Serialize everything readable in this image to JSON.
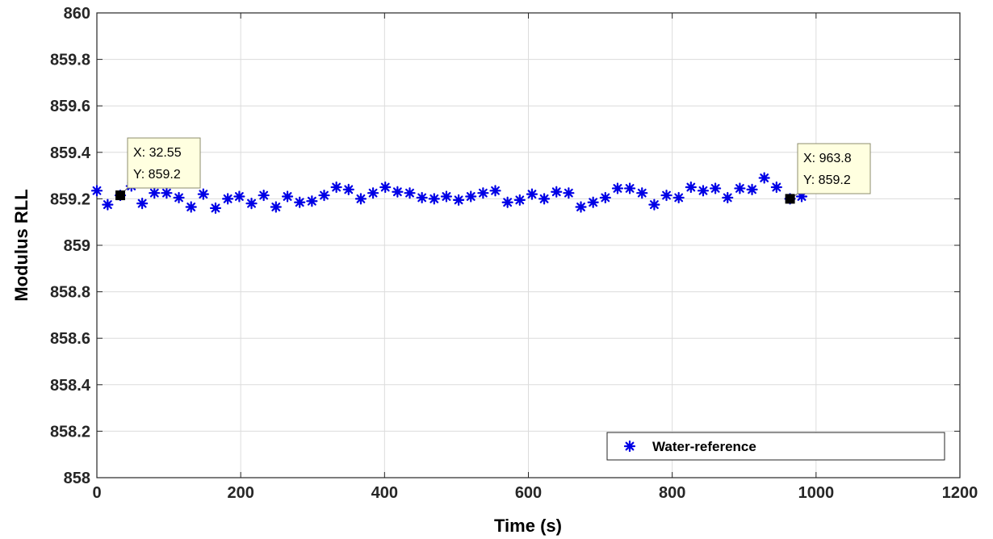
{
  "chart_data": {
    "type": "scatter",
    "title": "",
    "xlabel": "Time (s)",
    "ylabel": "Modulus RLL",
    "xlim": [
      0,
      1200
    ],
    "ylim": [
      858,
      860
    ],
    "xticks": [
      0,
      200,
      400,
      600,
      800,
      1000,
      1200
    ],
    "yticks": [
      858,
      858.2,
      858.4,
      858.6,
      858.8,
      859,
      859.2,
      859.4,
      859.6,
      859.8,
      860
    ],
    "ytick_labels": [
      "858",
      "858.2",
      "858.4",
      "858.6",
      "858.8",
      "859",
      "859.2",
      "859.4",
      "859.6",
      "859.8",
      "860"
    ],
    "grid": true,
    "legend_position": "bottom-right",
    "series": [
      {
        "name": "Water-reference",
        "color": "#0000e6",
        "marker": "star",
        "points": [
          [
            0,
            859.235
          ],
          [
            15,
            859.175
          ],
          [
            32.55,
            859.215
          ],
          [
            48,
            859.255
          ],
          [
            63,
            859.18
          ],
          [
            80,
            859.225
          ],
          [
            97,
            859.225
          ],
          [
            114,
            859.205
          ],
          [
            131,
            859.165
          ],
          [
            148,
            859.22
          ],
          [
            165,
            859.16
          ],
          [
            182,
            859.2
          ],
          [
            198,
            859.21
          ],
          [
            215,
            859.18
          ],
          [
            232,
            859.215
          ],
          [
            249,
            859.165
          ],
          [
            265,
            859.21
          ],
          [
            282,
            859.185
          ],
          [
            299,
            859.19
          ],
          [
            316,
            859.215
          ],
          [
            333,
            859.25
          ],
          [
            350,
            859.24
          ],
          [
            367,
            859.2
          ],
          [
            384,
            859.225
          ],
          [
            401,
            859.25
          ],
          [
            418,
            859.23
          ],
          [
            435,
            859.225
          ],
          [
            452,
            859.205
          ],
          [
            469,
            859.2
          ],
          [
            486,
            859.21
          ],
          [
            503,
            859.195
          ],
          [
            520,
            859.21
          ],
          [
            537,
            859.225
          ],
          [
            554,
            859.235
          ],
          [
            571,
            859.185
          ],
          [
            588,
            859.195
          ],
          [
            605,
            859.22
          ],
          [
            622,
            859.2
          ],
          [
            639,
            859.23
          ],
          [
            656,
            859.225
          ],
          [
            673,
            859.165
          ],
          [
            690,
            859.185
          ],
          [
            707,
            859.205
          ],
          [
            724,
            859.245
          ],
          [
            741,
            859.245
          ],
          [
            758,
            859.225
          ],
          [
            775,
            859.175
          ],
          [
            792,
            859.215
          ],
          [
            809,
            859.205
          ],
          [
            826,
            859.25
          ],
          [
            843,
            859.235
          ],
          [
            860,
            859.245
          ],
          [
            877,
            859.205
          ],
          [
            894,
            859.245
          ],
          [
            911,
            859.24
          ],
          [
            928,
            859.29
          ],
          [
            945,
            859.25
          ],
          [
            963.8,
            859.2
          ],
          [
            980,
            859.21
          ]
        ]
      }
    ],
    "datatips": [
      {
        "x_label": "X: 32.55",
        "y_label": "Y: 859.2",
        "x": 32.55,
        "y": 859.215
      },
      {
        "x_label": "X: 963.8",
        "y_label": "Y: 859.2",
        "x": 963.8,
        "y": 859.2
      }
    ]
  }
}
